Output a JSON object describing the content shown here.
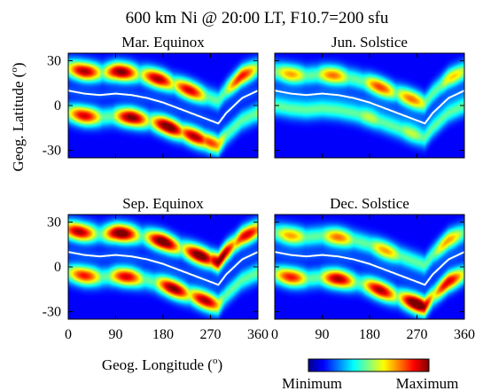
{
  "chart_data": {
    "type": "heatmap",
    "title": "600 km Ni @ 20:00 LT, F10.7=200 sfu",
    "xlabel": "Geog. Longitude (",
    "xlabel_sup": "o",
    "xlabel_close": ")",
    "ylabel": "Geog. Latitude (",
    "ylabel_sup": "o",
    "ylabel_close": ")",
    "xlim": [
      0,
      360
    ],
    "ylim": [
      -35,
      35
    ],
    "x_ticks": [
      "0",
      "90",
      "180",
      "270",
      "360"
    ],
    "y_ticks": [
      "30",
      "0",
      "-30"
    ],
    "colorbar": {
      "min_label": "Minimum",
      "max_label": "Maximum"
    },
    "colorscale": [
      "#00008f",
      "#0000ff",
      "#0080ff",
      "#00ffff",
      "#80ff80",
      "#ffff00",
      "#ff8000",
      "#ff0000",
      "#800000"
    ],
    "magnetic_equator": {
      "color": "#ffffff",
      "longitude": [
        0,
        30,
        60,
        90,
        120,
        150,
        180,
        210,
        240,
        270,
        285,
        300,
        330,
        360
      ],
      "latitude": [
        10,
        8,
        7,
        8,
        7,
        5,
        2,
        -2,
        -6,
        -10,
        -12,
        -5,
        5,
        10
      ]
    },
    "panels": [
      {
        "name": "Mar. Equinox",
        "crest_lon_shift": 0,
        "crests": [
          {
            "side": "north",
            "offset": 15,
            "peaks": [
              [
                30,
                0.85
              ],
              [
                100,
                0.9
              ],
              [
                170,
                0.85
              ],
              [
                230,
                0.8
              ],
              [
                330,
                0.75
              ]
            ]
          },
          {
            "side": "south",
            "offset": -15,
            "peaks": [
              [
                30,
                0.8
              ],
              [
                120,
                0.9
              ],
              [
                190,
                0.95
              ],
              [
                240,
                0.85
              ],
              [
                270,
                0.7
              ]
            ]
          }
        ]
      },
      {
        "name": "Jun. Solstice",
        "crest_lon_shift": 0,
        "crests": [
          {
            "side": "north",
            "offset": 13,
            "peaks": [
              [
                30,
                0.6
              ],
              [
                110,
                0.65
              ],
              [
                200,
                0.7
              ],
              [
                260,
                0.65
              ],
              [
                340,
                0.55
              ]
            ]
          },
          {
            "side": "south",
            "offset": -10,
            "peaks": [
              [
                180,
                0.45
              ],
              [
                260,
                0.45
              ]
            ]
          }
        ]
      },
      {
        "name": "Sep. Equinox",
        "crest_lon_shift": 0,
        "crests": [
          {
            "side": "north",
            "offset": 15,
            "peaks": [
              [
                20,
                0.85
              ],
              [
                100,
                0.95
              ],
              [
                180,
                0.95
              ],
              [
                250,
                0.95
              ],
              [
                290,
                0.9
              ],
              [
                340,
                0.8
              ]
            ]
          },
          {
            "side": "south",
            "offset": -14,
            "peaks": [
              [
                30,
                0.75
              ],
              [
                110,
                0.8
              ],
              [
                200,
                0.9
              ],
              [
                260,
                0.85
              ]
            ]
          }
        ]
      },
      {
        "name": "Dec. Solstice",
        "crest_lon_shift": 0,
        "crests": [
          {
            "side": "north",
            "offset": 13,
            "peaks": [
              [
                30,
                0.6
              ],
              [
                120,
                0.65
              ],
              [
                210,
                0.6
              ],
              [
                330,
                0.6
              ]
            ]
          },
          {
            "side": "south",
            "offset": -15,
            "peaks": [
              [
                30,
                0.75
              ],
              [
                120,
                0.85
              ],
              [
                200,
                0.85
              ],
              [
                270,
                1.0
              ],
              [
                330,
                0.8
              ]
            ]
          }
        ]
      }
    ]
  }
}
